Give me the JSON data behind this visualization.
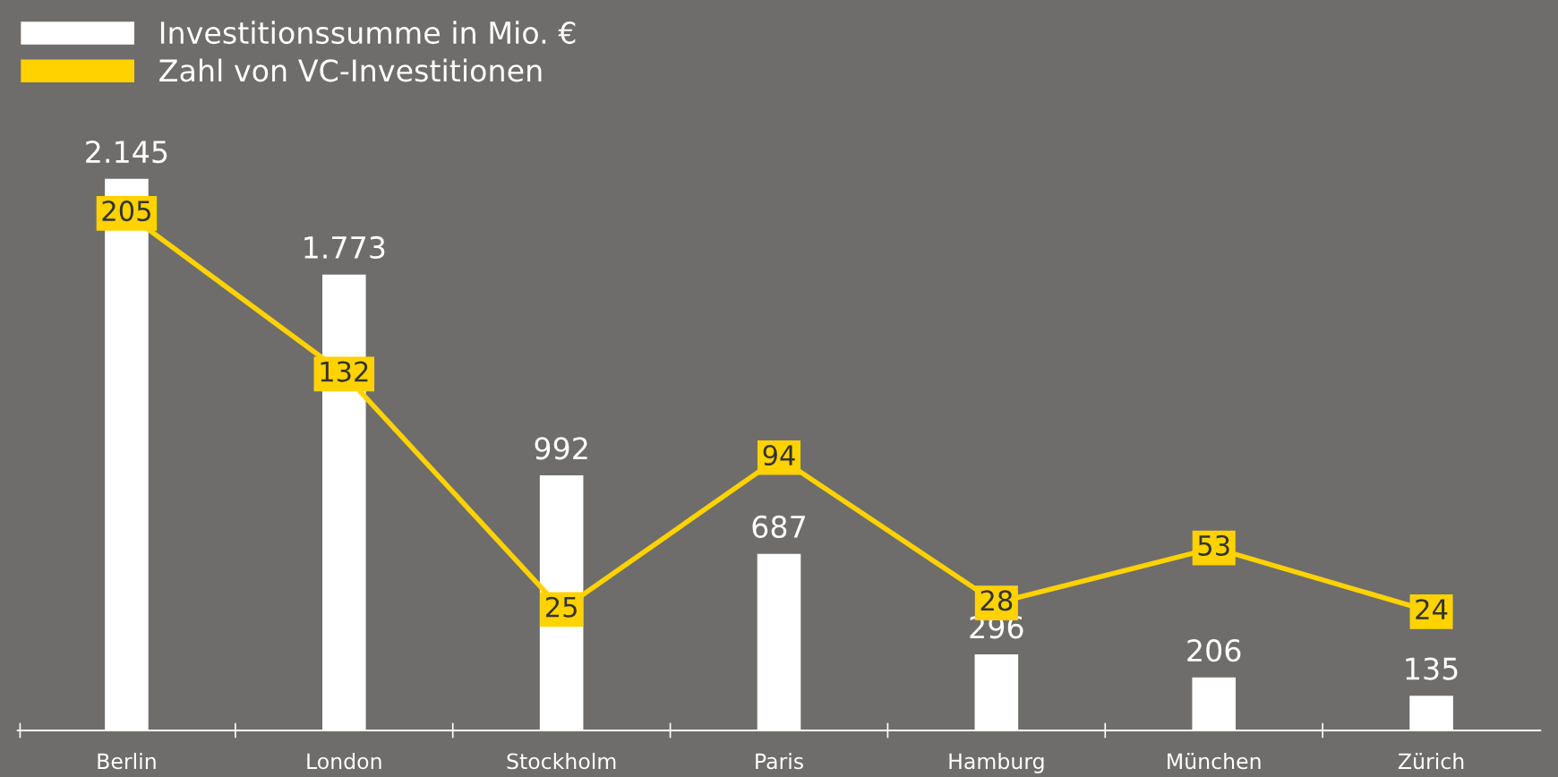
{
  "chart_data": {
    "type": "bar",
    "categories": [
      "Berlin",
      "London",
      "Stockholm",
      "Paris",
      "Hamburg",
      "München",
      "Zürich"
    ],
    "series": [
      {
        "name": "Investitionssumme in Mio. €",
        "color": "#ffffff",
        "values": [
          2145,
          1773,
          992,
          687,
          296,
          206,
          135
        ],
        "value_labels": [
          "2.145",
          "1.773",
          "992",
          "687",
          "296",
          "206",
          "135"
        ]
      },
      {
        "name": "Zahl von VC-Investitionen",
        "type": "line",
        "axis": "y2",
        "marker": "square",
        "color": "#ffd200",
        "values": [
          205,
          132,
          25,
          94,
          28,
          53,
          24
        ]
      }
    ],
    "data_labels": true,
    "legend": "top left",
    "tick_labels": "x"
  }
}
